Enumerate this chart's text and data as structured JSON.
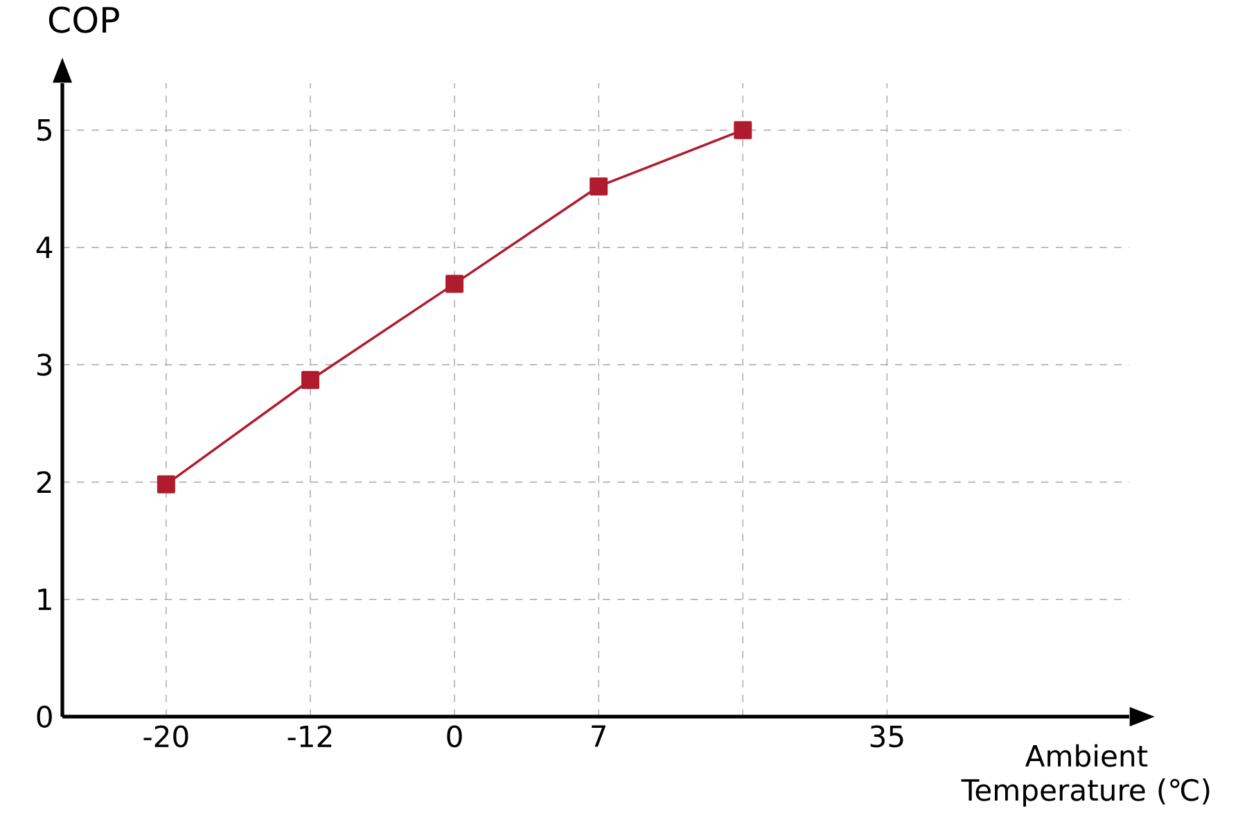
{
  "chart_data": {
    "type": "line",
    "xlabel": "Ambient Temperature (℃)",
    "ylabel": "COP",
    "categories": [
      "-20",
      "-12",
      "0",
      "7",
      null,
      "35"
    ],
    "series": [
      {
        "color": "#b01c2e",
        "values": [
          1.98,
          2.87,
          3.69,
          4.52,
          5.0,
          null
        ]
      }
    ],
    "ylim": [
      0,
      5.4
    ],
    "yticks": [
      0,
      1,
      2,
      3,
      4,
      5
    ],
    "grid": true,
    "marker": "square",
    "line_style": "solid"
  }
}
